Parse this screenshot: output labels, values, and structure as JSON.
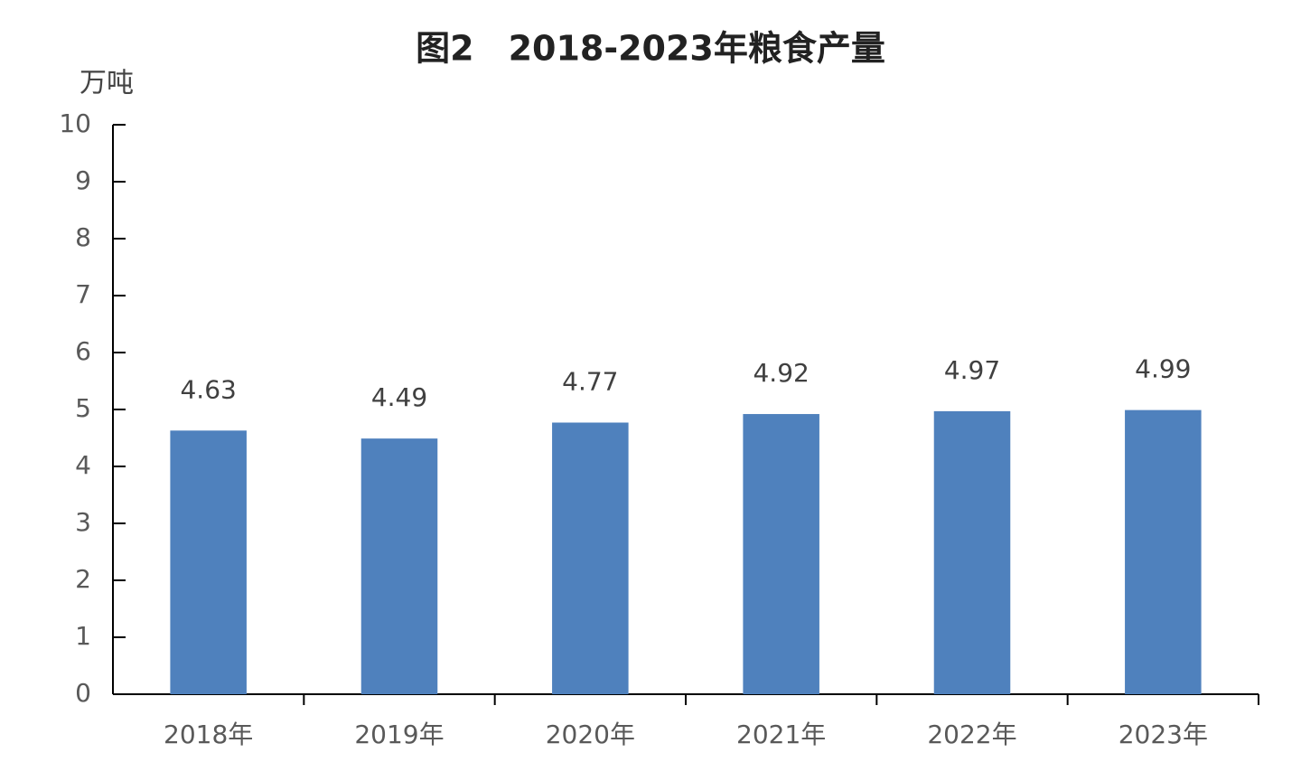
{
  "chart_data": {
    "type": "bar",
    "title": "图2　2018-2023年粮食产量",
    "y_label": "万吨",
    "categories": [
      "2018年",
      "2019年",
      "2020年",
      "2021年",
      "2022年",
      "2023年"
    ],
    "values": [
      4.63,
      4.49,
      4.77,
      4.92,
      4.97,
      4.99
    ],
    "color": "#4f81bd",
    "ylim": [
      0,
      10
    ],
    "yticks": [
      0,
      1,
      2,
      3,
      4,
      5,
      6,
      7,
      8,
      9,
      10
    ],
    "grid": false
  }
}
